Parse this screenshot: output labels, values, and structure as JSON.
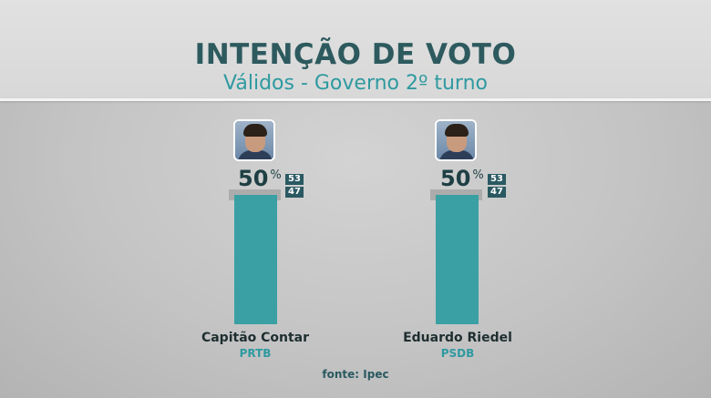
{
  "header": {
    "title": "INTENÇÃO DE VOTO",
    "subtitle": "Válidos - Governo 2º turno"
  },
  "chart_data": {
    "type": "bar",
    "categories": [
      "Capitão Contar",
      "Eduardo Riedel"
    ],
    "parties": [
      "PRTB",
      "PSDB"
    ],
    "values": [
      50,
      50
    ],
    "value_suffix": "%",
    "interval_labels": [
      [
        "53",
        "47"
      ],
      [
        "53",
        "47"
      ]
    ],
    "ylim": [
      0,
      100
    ],
    "title": "INTENÇÃO DE VOTO",
    "subtitle": "Válidos - Governo 2º turno",
    "bar_color": "#3aa0a4"
  },
  "footer": {
    "source": "fonte: Ipec"
  }
}
